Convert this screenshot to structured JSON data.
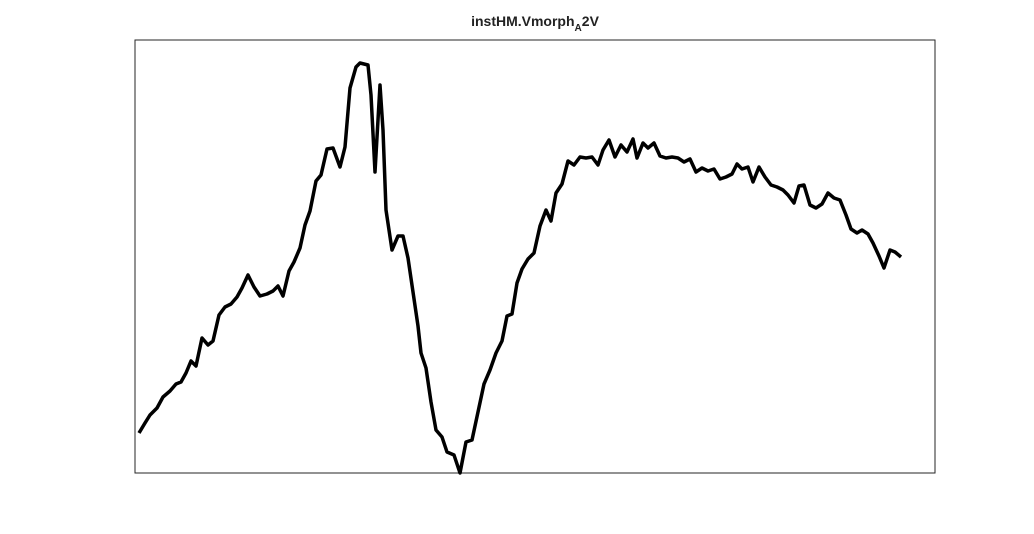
{
  "chart_data": {
    "type": "line",
    "title": [
      "instHM.Vmorph",
      "A",
      "2V"
    ],
    "color": "#000000",
    "xlim": [
      0,
      800
    ],
    "ylim": [
      0,
      433
    ],
    "x": [
      4,
      10,
      15,
      22,
      28,
      35,
      41,
      46,
      51,
      56,
      61,
      67,
      73,
      78,
      84,
      90,
      96,
      102,
      107,
      113,
      119,
      125,
      132,
      138,
      143,
      148,
      154,
      159,
      165,
      170,
      175,
      181,
      186,
      192,
      198,
      205,
      210,
      215,
      221,
      225,
      233,
      236,
      240,
      245,
      248,
      251,
      257,
      263,
      268,
      273,
      278,
      283,
      286,
      291,
      296,
      301,
      307,
      312,
      319,
      325,
      331,
      337,
      343,
      349,
      355,
      361,
      367,
      372,
      377,
      382,
      387,
      393,
      399,
      405,
      411,
      416,
      421,
      427,
      433,
      439,
      445,
      451,
      457,
      463,
      468,
      474,
      480,
      486,
      492,
      498,
      502,
      508,
      513,
      519,
      525,
      531,
      537,
      543,
      549,
      555,
      561,
      567,
      573,
      579,
      585,
      591,
      597,
      602,
      607,
      613,
      618,
      624,
      630,
      636,
      642,
      648,
      653,
      659,
      664,
      669,
      675,
      681,
      687,
      693,
      699,
      705,
      711,
      716,
      722,
      727,
      733,
      738,
      744,
      749,
      755,
      760,
      766
    ],
    "values": [
      40,
      50,
      58,
      65,
      76,
      82,
      89,
      91,
      100,
      112,
      107,
      135,
      128,
      132,
      158,
      166,
      169,
      176,
      185,
      198,
      186,
      177,
      179,
      182,
      187,
      177,
      202,
      211,
      225,
      248,
      262,
      292,
      298,
      324,
      325,
      306,
      326,
      385,
      406,
      410,
      408,
      378,
      301,
      388,
      343,
      263,
      223,
      237,
      237,
      215,
      181,
      147,
      120,
      105,
      71,
      43,
      36,
      21,
      18,
      0,
      31,
      33,
      61,
      89,
      103,
      120,
      132,
      157,
      159,
      190,
      204,
      214,
      220,
      247,
      263,
      252,
      280,
      289,
      312,
      308,
      316,
      315,
      316,
      308,
      323,
      333,
      316,
      328,
      321,
      334,
      315,
      330,
      325,
      330,
      317,
      315,
      316,
      315,
      311,
      314,
      301,
      305,
      302,
      304,
      294,
      296,
      299,
      309,
      304,
      306,
      291,
      306,
      296,
      288,
      286,
      283,
      278,
      270,
      287,
      288,
      268,
      265,
      269,
      280,
      275,
      273,
      258,
      244,
      240,
      243,
      239,
      230,
      217,
      205,
      223,
      221,
      216
    ]
  }
}
